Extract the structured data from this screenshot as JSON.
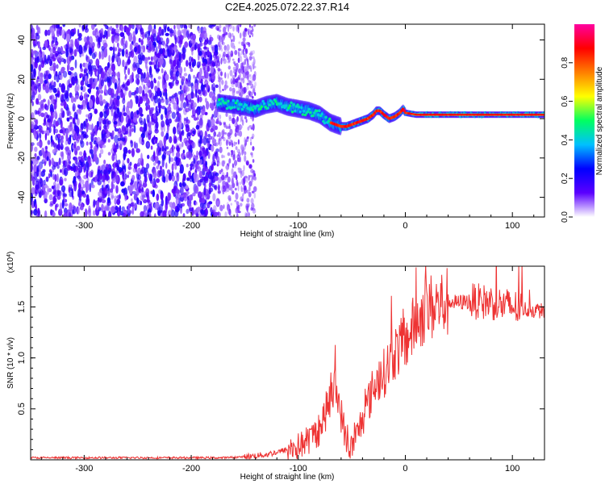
{
  "page_title": "C2E4.2025.072.22.37.R14",
  "chart_data": [
    {
      "type": "heatmap",
      "title": "C2E4.2025.072.22.37.R14",
      "xlabel": "Height of straight line (km)",
      "ylabel": "Frequency (Hz)",
      "xlim": [
        -350,
        130
      ],
      "ylim": [
        -50,
        48
      ],
      "xticks": [
        -300,
        -200,
        -100,
        0,
        100
      ],
      "yticks": [
        -40,
        -20,
        0,
        20,
        40
      ],
      "grid": false,
      "colorbar": {
        "label": "Normalized spectral amplitude",
        "range": [
          0.0,
          1.0
        ],
        "ticks": [
          "0.0",
          "0.2",
          "0.4",
          "0.6",
          "0.8"
        ],
        "colors": [
          "#ffffff",
          "#5b00ff",
          "#0000ff",
          "#00c0ff",
          "#00ff60",
          "#ffff00",
          "#ff7f00",
          "#ff0000",
          "#ff00a0"
        ]
      },
      "ridge": {
        "height_km": [
          -175,
          -160,
          -150,
          -140,
          -130,
          -120,
          -110,
          -100,
          -90,
          -80,
          -75,
          -70,
          -65,
          -60,
          -55,
          -50,
          -45,
          -40,
          -35,
          -30,
          -27,
          -24,
          -20,
          -15,
          -10,
          -5,
          -2,
          0,
          10,
          20,
          40,
          60,
          80,
          100,
          120,
          130
        ],
        "frequency_hz": [
          8,
          7,
          6,
          5,
          7,
          8,
          6,
          5,
          4,
          2,
          0,
          -2,
          -3,
          -4,
          -4,
          -3,
          -2,
          -1,
          0,
          2,
          4,
          4,
          2,
          0,
          1,
          3,
          5,
          3,
          2,
          2,
          2,
          2,
          2,
          2,
          2,
          2
        ]
      },
      "noise_region_km": [
        -350,
        -175
      ],
      "scatter_region_km": [
        -175,
        -140
      ]
    },
    {
      "type": "line",
      "xlabel": "Height of straight line (km)",
      "ylabel": "SNR (10 * v/v)",
      "y_multiplier": "(x10",
      "y_multiplier_exp": "4",
      "y_multiplier_close": ")",
      "xlim": [
        -350,
        130
      ],
      "ylim": [
        0,
        1.9
      ],
      "xticks": [
        -300,
        -200,
        -100,
        0,
        100
      ],
      "yticks": [
        0.5,
        1.0,
        1.5
      ],
      "ytick_labels": [
        "0.5",
        "1.0",
        "1.5"
      ],
      "color": "#ee3333",
      "grid": false,
      "series": [
        {
          "x": [
            -350,
            -300,
            -250,
            -200,
            -170,
            -150,
            -130,
            -110,
            -100,
            -90,
            -80,
            -75,
            -70,
            -65,
            -62,
            -58,
            -55,
            -50,
            -45,
            -40,
            -35,
            -30,
            -25,
            -20,
            -15,
            -10,
            -5,
            0,
            5,
            10,
            15,
            20,
            30,
            40,
            50,
            60,
            70,
            80,
            90,
            100,
            110,
            120,
            130
          ],
          "y": [
            0.02,
            0.02,
            0.02,
            0.02,
            0.02,
            0.03,
            0.05,
            0.1,
            0.13,
            0.2,
            0.3,
            0.45,
            0.6,
            0.7,
            0.55,
            0.35,
            0.15,
            0.12,
            0.25,
            0.4,
            0.55,
            0.7,
            0.8,
            0.85,
            0.95,
            1.05,
            1.1,
            1.15,
            1.25,
            1.35,
            1.42,
            1.48,
            1.52,
            1.55,
            1.54,
            1.56,
            1.55,
            1.55,
            1.52,
            1.5,
            1.48,
            1.47,
            1.46
          ]
        }
      ]
    }
  ]
}
